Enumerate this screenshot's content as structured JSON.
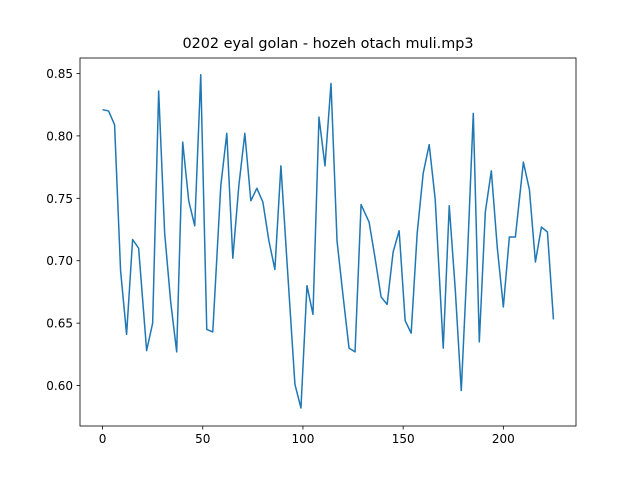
{
  "chart_data": {
    "type": "line",
    "title": "0202 eyal golan - hozeh otach muli.mp3",
    "x": [
      0,
      3,
      6,
      9,
      12,
      15,
      18,
      22,
      25,
      28,
      31,
      34,
      37,
      40,
      43,
      46,
      49,
      52,
      55,
      59,
      62,
      65,
      68,
      71,
      74,
      77,
      80,
      83,
      86,
      89,
      92,
      96,
      99,
      102,
      105,
      108,
      111,
      114,
      117,
      120,
      123,
      126,
      129,
      133,
      136,
      139,
      142,
      145,
      148,
      151,
      154,
      157,
      160,
      163,
      166,
      170,
      173,
      176,
      179,
      182,
      185,
      188,
      191,
      194,
      197,
      200,
      203,
      206,
      210,
      213,
      216,
      219,
      222,
      225
    ],
    "series": [
      {
        "name": "0202 eyal golan - hozeh otach muli.mp3",
        "color": "#1f77b4",
        "values": [
          0.821,
          0.82,
          0.809,
          0.692,
          0.641,
          0.717,
          0.71,
          0.628,
          0.65,
          0.836,
          0.722,
          0.667,
          0.627,
          0.795,
          0.748,
          0.728,
          0.849,
          0.645,
          0.643,
          0.76,
          0.802,
          0.702,
          0.76,
          0.802,
          0.748,
          0.758,
          0.747,
          0.716,
          0.693,
          0.776,
          0.7,
          0.601,
          0.582,
          0.68,
          0.657,
          0.815,
          0.776,
          0.842,
          0.716,
          0.672,
          0.63,
          0.627,
          0.745,
          0.731,
          0.702,
          0.671,
          0.665,
          0.707,
          0.724,
          0.652,
          0.642,
          0.722,
          0.77,
          0.793,
          0.749,
          0.63,
          0.744,
          0.677,
          0.596,
          0.7,
          0.818,
          0.635,
          0.739,
          0.772,
          0.71,
          0.663,
          0.719,
          0.719,
          0.779,
          0.757,
          0.699,
          0.727,
          0.723,
          0.653
        ]
      }
    ],
    "xlim": [
      -11.25,
      236.25
    ],
    "xticks": [
      0,
      50,
      100,
      150,
      200
    ],
    "ylim": [
      0.5676,
      0.8624
    ],
    "yticks": [
      {
        "value": 0.6,
        "label": "0.60"
      },
      {
        "value": 0.65,
        "label": "0.65"
      },
      {
        "value": 0.7,
        "label": "0.70"
      },
      {
        "value": 0.75,
        "label": "0.75"
      },
      {
        "value": 0.8,
        "label": "0.80"
      },
      {
        "value": 0.85,
        "label": "0.85"
      }
    ]
  }
}
